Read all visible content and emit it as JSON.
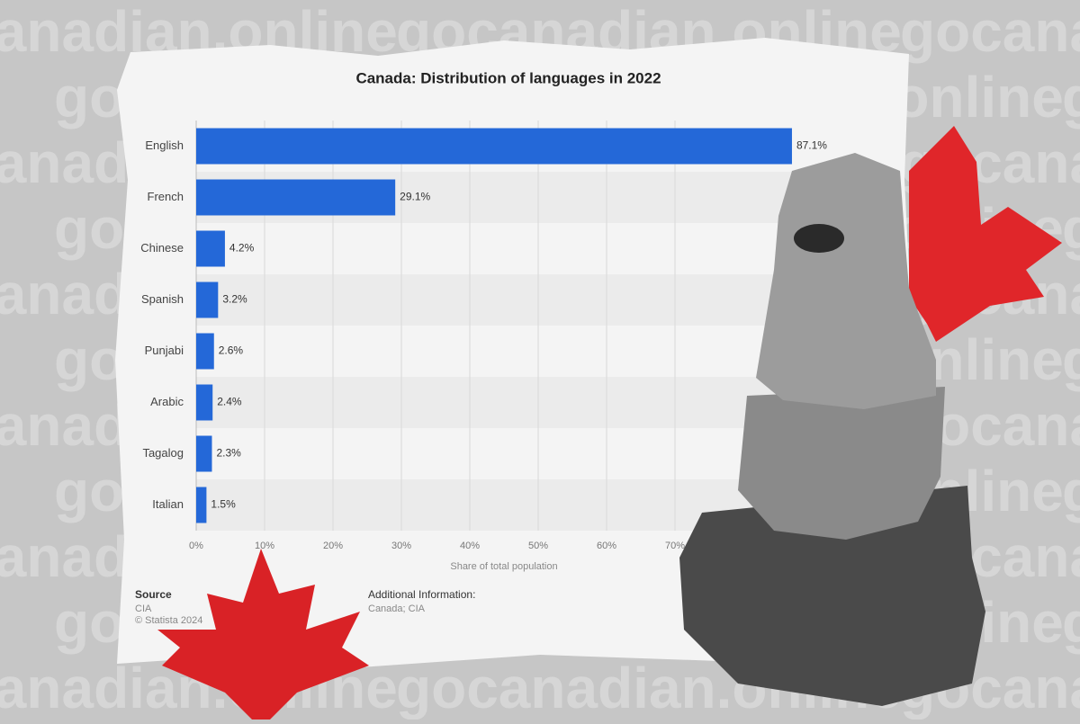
{
  "watermark": "gocanadian.online",
  "chart_data": {
    "type": "bar",
    "orientation": "horizontal",
    "title": "Canada: Distribution of languages in 2022",
    "categories": [
      "English",
      "French",
      "Chinese",
      "Spanish",
      "Punjabi",
      "Arabic",
      "Tagalog",
      "Italian"
    ],
    "values": [
      87.1,
      29.1,
      4.2,
      3.2,
      2.6,
      2.4,
      2.3,
      1.5
    ],
    "value_labels": [
      "87.1%",
      "29.1%",
      "4.2%",
      "3.2%",
      "2.6%",
      "2.4%",
      "2.3%",
      "1.5%"
    ],
    "color": "#2468d8",
    "xlim": [
      0,
      90
    ],
    "xticks": [
      {
        "value": 0,
        "label": "0%"
      },
      {
        "value": 10,
        "label": "10%"
      },
      {
        "value": 20,
        "label": "20%"
      },
      {
        "value": 30,
        "label": "30%"
      },
      {
        "value": 40,
        "label": "40%"
      },
      {
        "value": 50,
        "label": "50%"
      },
      {
        "value": 60,
        "label": "60%"
      },
      {
        "value": 70,
        "label": "70%"
      }
    ],
    "xlabel": "Share of total population",
    "grid": true,
    "source": {
      "heading": "Source",
      "lines": [
        "CIA",
        "© Statista 2024"
      ]
    },
    "additional_info": {
      "heading": "Additional Information:",
      "text": "Canada; CIA"
    }
  }
}
